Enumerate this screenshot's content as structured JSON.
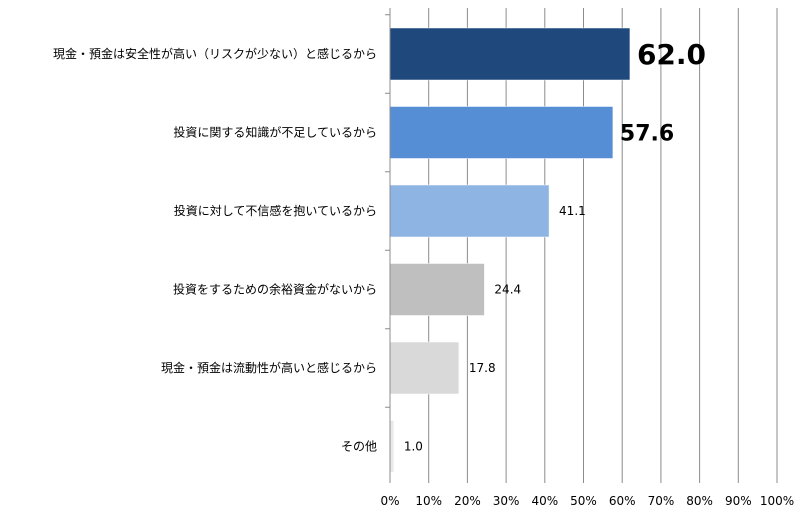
{
  "chart_data": {
    "type": "bar",
    "orientation": "horizontal",
    "categories": [
      "現金・預金は安全性が高い（リスクが少ない）と感じるから",
      "投資に関する知識が不足しているから",
      "投資に対して不信感を抱いているから",
      "投資をするための余裕資金がないから",
      "現金・預金は流動性が高いと感じるから",
      "その他"
    ],
    "values": [
      62.0,
      57.6,
      41.1,
      24.4,
      17.8,
      1.0
    ],
    "value_labels": [
      "62.0",
      "57.6",
      "41.1",
      "24.4",
      "17.8",
      "1.0"
    ],
    "colors": [
      "#1f497d",
      "#558ed5",
      "#8eb4e3",
      "#bfbfbf",
      "#d9d9d9",
      "#e9e9e9"
    ],
    "xlim": [
      0,
      100
    ],
    "x_ticks": [
      "0%",
      "10%",
      "20%",
      "30%",
      "40%",
      "50%",
      "60%",
      "70%",
      "80%",
      "90%",
      "100%"
    ],
    "grid": true,
    "title": "",
    "xlabel": "",
    "ylabel": ""
  }
}
